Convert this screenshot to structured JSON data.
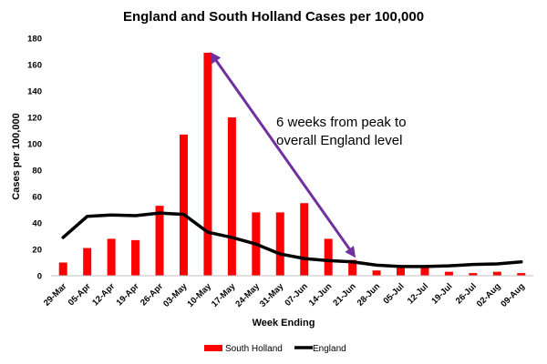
{
  "chart_data": {
    "type": "bar",
    "title": "England and South Holland Cases per 100,000",
    "xlabel": "Week Ending",
    "ylabel": "Cases per 100,000",
    "ylim": [
      0,
      180
    ],
    "yticks": [
      0,
      20,
      40,
      60,
      80,
      100,
      120,
      140,
      160,
      180
    ],
    "categories": [
      "29-Mar",
      "05-Apr",
      "12-Apr",
      "19-Apr",
      "26-Apr",
      "03-May",
      "10-May",
      "17-May",
      "24-May",
      "31-May",
      "07-Jun",
      "14-Jun",
      "21-Jun",
      "28-Jun",
      "05-Jul",
      "12-Jul",
      "19-Jul",
      "26-Jul",
      "02-Aug",
      "09-Aug"
    ],
    "series": [
      {
        "name": "South Holland",
        "kind": "bar",
        "color": "#ff0000",
        "values": [
          10,
          21,
          28,
          27,
          53,
          107,
          169,
          120,
          48,
          48,
          55,
          28,
          12,
          4,
          6,
          6,
          3,
          2,
          3,
          2
        ]
      },
      {
        "name": "England",
        "kind": "line",
        "color": "#000000",
        "values": [
          29,
          45,
          46,
          45.5,
          47.5,
          46.5,
          33,
          29,
          24,
          16.5,
          13,
          11.5,
          10.5,
          8,
          7,
          7,
          7.5,
          8.5,
          9,
          10.5
        ]
      }
    ],
    "grid": false,
    "legend": "bottom",
    "annotation": {
      "lines": [
        "6 weeks from peak to",
        "overall England level"
      ],
      "arrow_color": "#7030a0",
      "arrow_from": {
        "category": "10-May",
        "y": 169
      },
      "arrow_to": {
        "category": "21-Jun",
        "y": 17
      }
    }
  }
}
